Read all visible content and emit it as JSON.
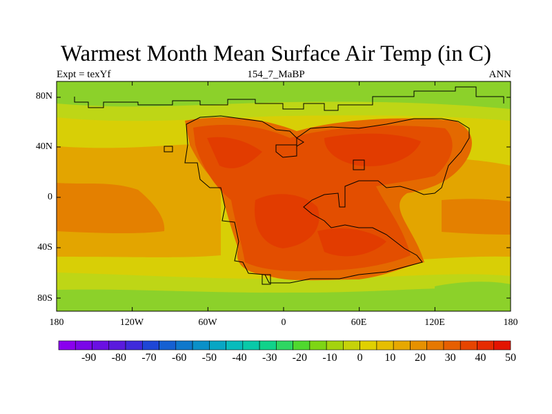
{
  "title": "Warmest Month Mean Surface Air Temp (in C)",
  "subtitle_left": "Expt = texYf",
  "subtitle_center": "154_7_MaBP",
  "subtitle_right": "ANN",
  "lat_labels": [
    "80N",
    "40N",
    "0",
    "40S",
    "80S"
  ],
  "lon_labels": [
    "180",
    "120W",
    "60W",
    "0",
    "60E",
    "120E",
    "180"
  ],
  "colorbar": {
    "labels": [
      "-90",
      "-80",
      "-70",
      "-60",
      "-50",
      "-40",
      "-30",
      "-20",
      "-10",
      "0",
      "10",
      "20",
      "30",
      "40",
      "50"
    ],
    "colors": [
      "#8a00ee",
      "#7a07e8",
      "#6a10e2",
      "#5a1add",
      "#3f2adb",
      "#1e46d6",
      "#1560d2",
      "#0f78cc",
      "#0a90c8",
      "#08a6c4",
      "#08bcbc",
      "#09c9a8",
      "#10d28a",
      "#2ed662",
      "#4fd82e",
      "#7ed514",
      "#a4d30e",
      "#c6d20a",
      "#e0d000",
      "#e6be00",
      "#e6a800",
      "#e69100",
      "#e67800",
      "#e65f00",
      "#e64500",
      "#e62b00",
      "#e31400"
    ]
  },
  "map_colors": {
    "cold_band": "#8cd12a",
    "cool": "#bed616",
    "mild": "#d8cf06",
    "warm_ocean": "#e3a500",
    "hot_ocean": "#e48000",
    "land_warm": "#e46900",
    "land_hot": "#e34e00",
    "land_core": "#e23c00"
  }
}
